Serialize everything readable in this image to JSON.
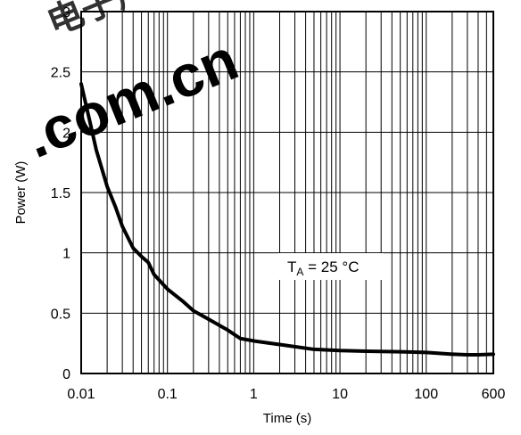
{
  "chart_data": {
    "type": "line",
    "xlabel": "Time (s)",
    "ylabel": "Power (W)",
    "xscale": "log",
    "xlim": [
      0.01,
      600
    ],
    "ylim": [
      0,
      3
    ],
    "grid": true,
    "x_ticks": [
      {
        "value": 0.01,
        "label": "0.01"
      },
      {
        "value": 0.1,
        "label": "0.1"
      },
      {
        "value": 1,
        "label": "1"
      },
      {
        "value": 10,
        "label": "10"
      },
      {
        "value": 100,
        "label": "100"
      },
      {
        "value": 600,
        "label": "600"
      }
    ],
    "y_ticks": [
      {
        "value": 0,
        "label": "0"
      },
      {
        "value": 0.5,
        "label": "0.5"
      },
      {
        "value": 1,
        "label": "1"
      },
      {
        "value": 1.5,
        "label": "1.5"
      },
      {
        "value": 2,
        "label": "2"
      },
      {
        "value": 2.5,
        "label": "2.5"
      },
      {
        "value": 3,
        "label": "3"
      }
    ],
    "annotation": {
      "main": "T",
      "subscript": "A",
      "rest": " = 25 °C",
      "x": 30,
      "y": 0.85
    },
    "series": [
      {
        "x": [
          0.01,
          0.0125,
          0.015,
          0.02,
          0.025,
          0.03,
          0.04,
          0.05,
          0.06,
          0.07,
          0.1,
          0.15,
          0.2,
          0.3,
          0.5,
          0.7,
          1,
          2,
          5,
          10,
          20,
          50,
          100,
          200,
          300,
          400,
          600
        ],
        "y": [
          2.4,
          2.1,
          1.85,
          1.55,
          1.38,
          1.22,
          1.04,
          0.97,
          0.92,
          0.82,
          0.7,
          0.6,
          0.52,
          0.45,
          0.36,
          0.29,
          0.27,
          0.24,
          0.2,
          0.19,
          0.185,
          0.18,
          0.175,
          0.16,
          0.155,
          0.155,
          0.16
        ]
      }
    ],
    "watermark": "电子产品世界 .com.cn"
  },
  "colors": {
    "line": "#000000",
    "grid": "#000000",
    "watermark_red": "#e8320f",
    "watermark_grey": "#c8c8c8"
  }
}
